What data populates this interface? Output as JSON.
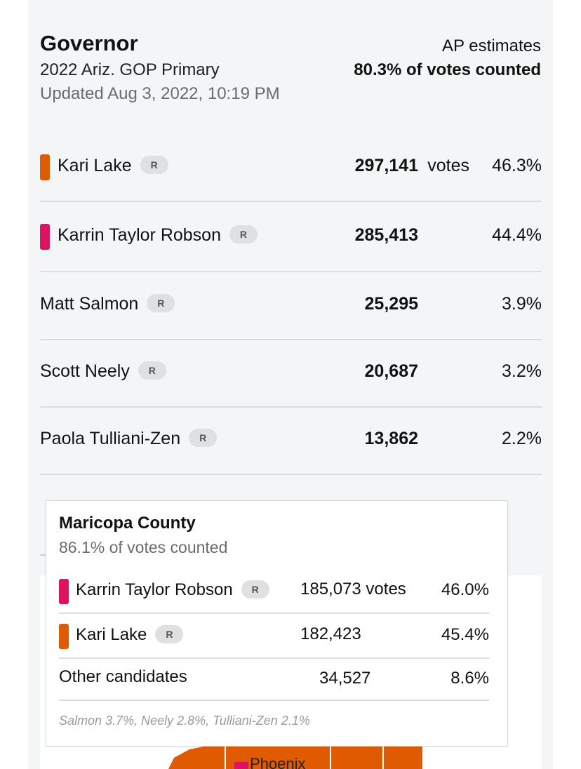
{
  "header": {
    "title": "Governor",
    "subtitle": "2022 Ariz. GOP Primary",
    "updated": "Updated Aug 3, 2022, 10:19 PM",
    "ap_label": "AP estimates",
    "counted": "80.3% of votes counted"
  },
  "candidates": [
    {
      "name": "Kari Lake",
      "party": "R",
      "votes": "297,141",
      "votes_word": "votes",
      "pct": "46.3%",
      "color": "#e05a00"
    },
    {
      "name": "Karrin Taylor Robson",
      "party": "R",
      "votes": "285,413",
      "pct": "44.4%",
      "color": "#e0115f"
    },
    {
      "name": "Matt Salmon",
      "party": "R",
      "votes": "25,295",
      "pct": "3.9%"
    },
    {
      "name": "Scott Neely",
      "party": "R",
      "votes": "20,687",
      "pct": "3.2%"
    },
    {
      "name": "Paola Tulliani-Zen",
      "party": "R",
      "votes": "13,862",
      "pct": "2.2%"
    }
  ],
  "tooltip": {
    "county": "Maricopa County",
    "counted": "86.1% of votes counted",
    "rows": [
      {
        "name": "Karrin Taylor Robson",
        "party": "R",
        "votes": "185,073 votes",
        "pct": "46.0%",
        "color": "#e0115f"
      },
      {
        "name": "Kari Lake",
        "party": "R",
        "votes": "182,423",
        "pct": "45.4%",
        "color": "#e05a00"
      },
      {
        "name": "Other candidates",
        "votes": "34,527",
        "pct": "8.6%"
      }
    ],
    "footnote": "Salmon 3.7%, Neely 2.8%, Tulliani-Zen 2.1%"
  },
  "map": {
    "city_label": "Phoenix",
    "lake_color": "#e05a00",
    "robson_color": "#e0115f"
  }
}
